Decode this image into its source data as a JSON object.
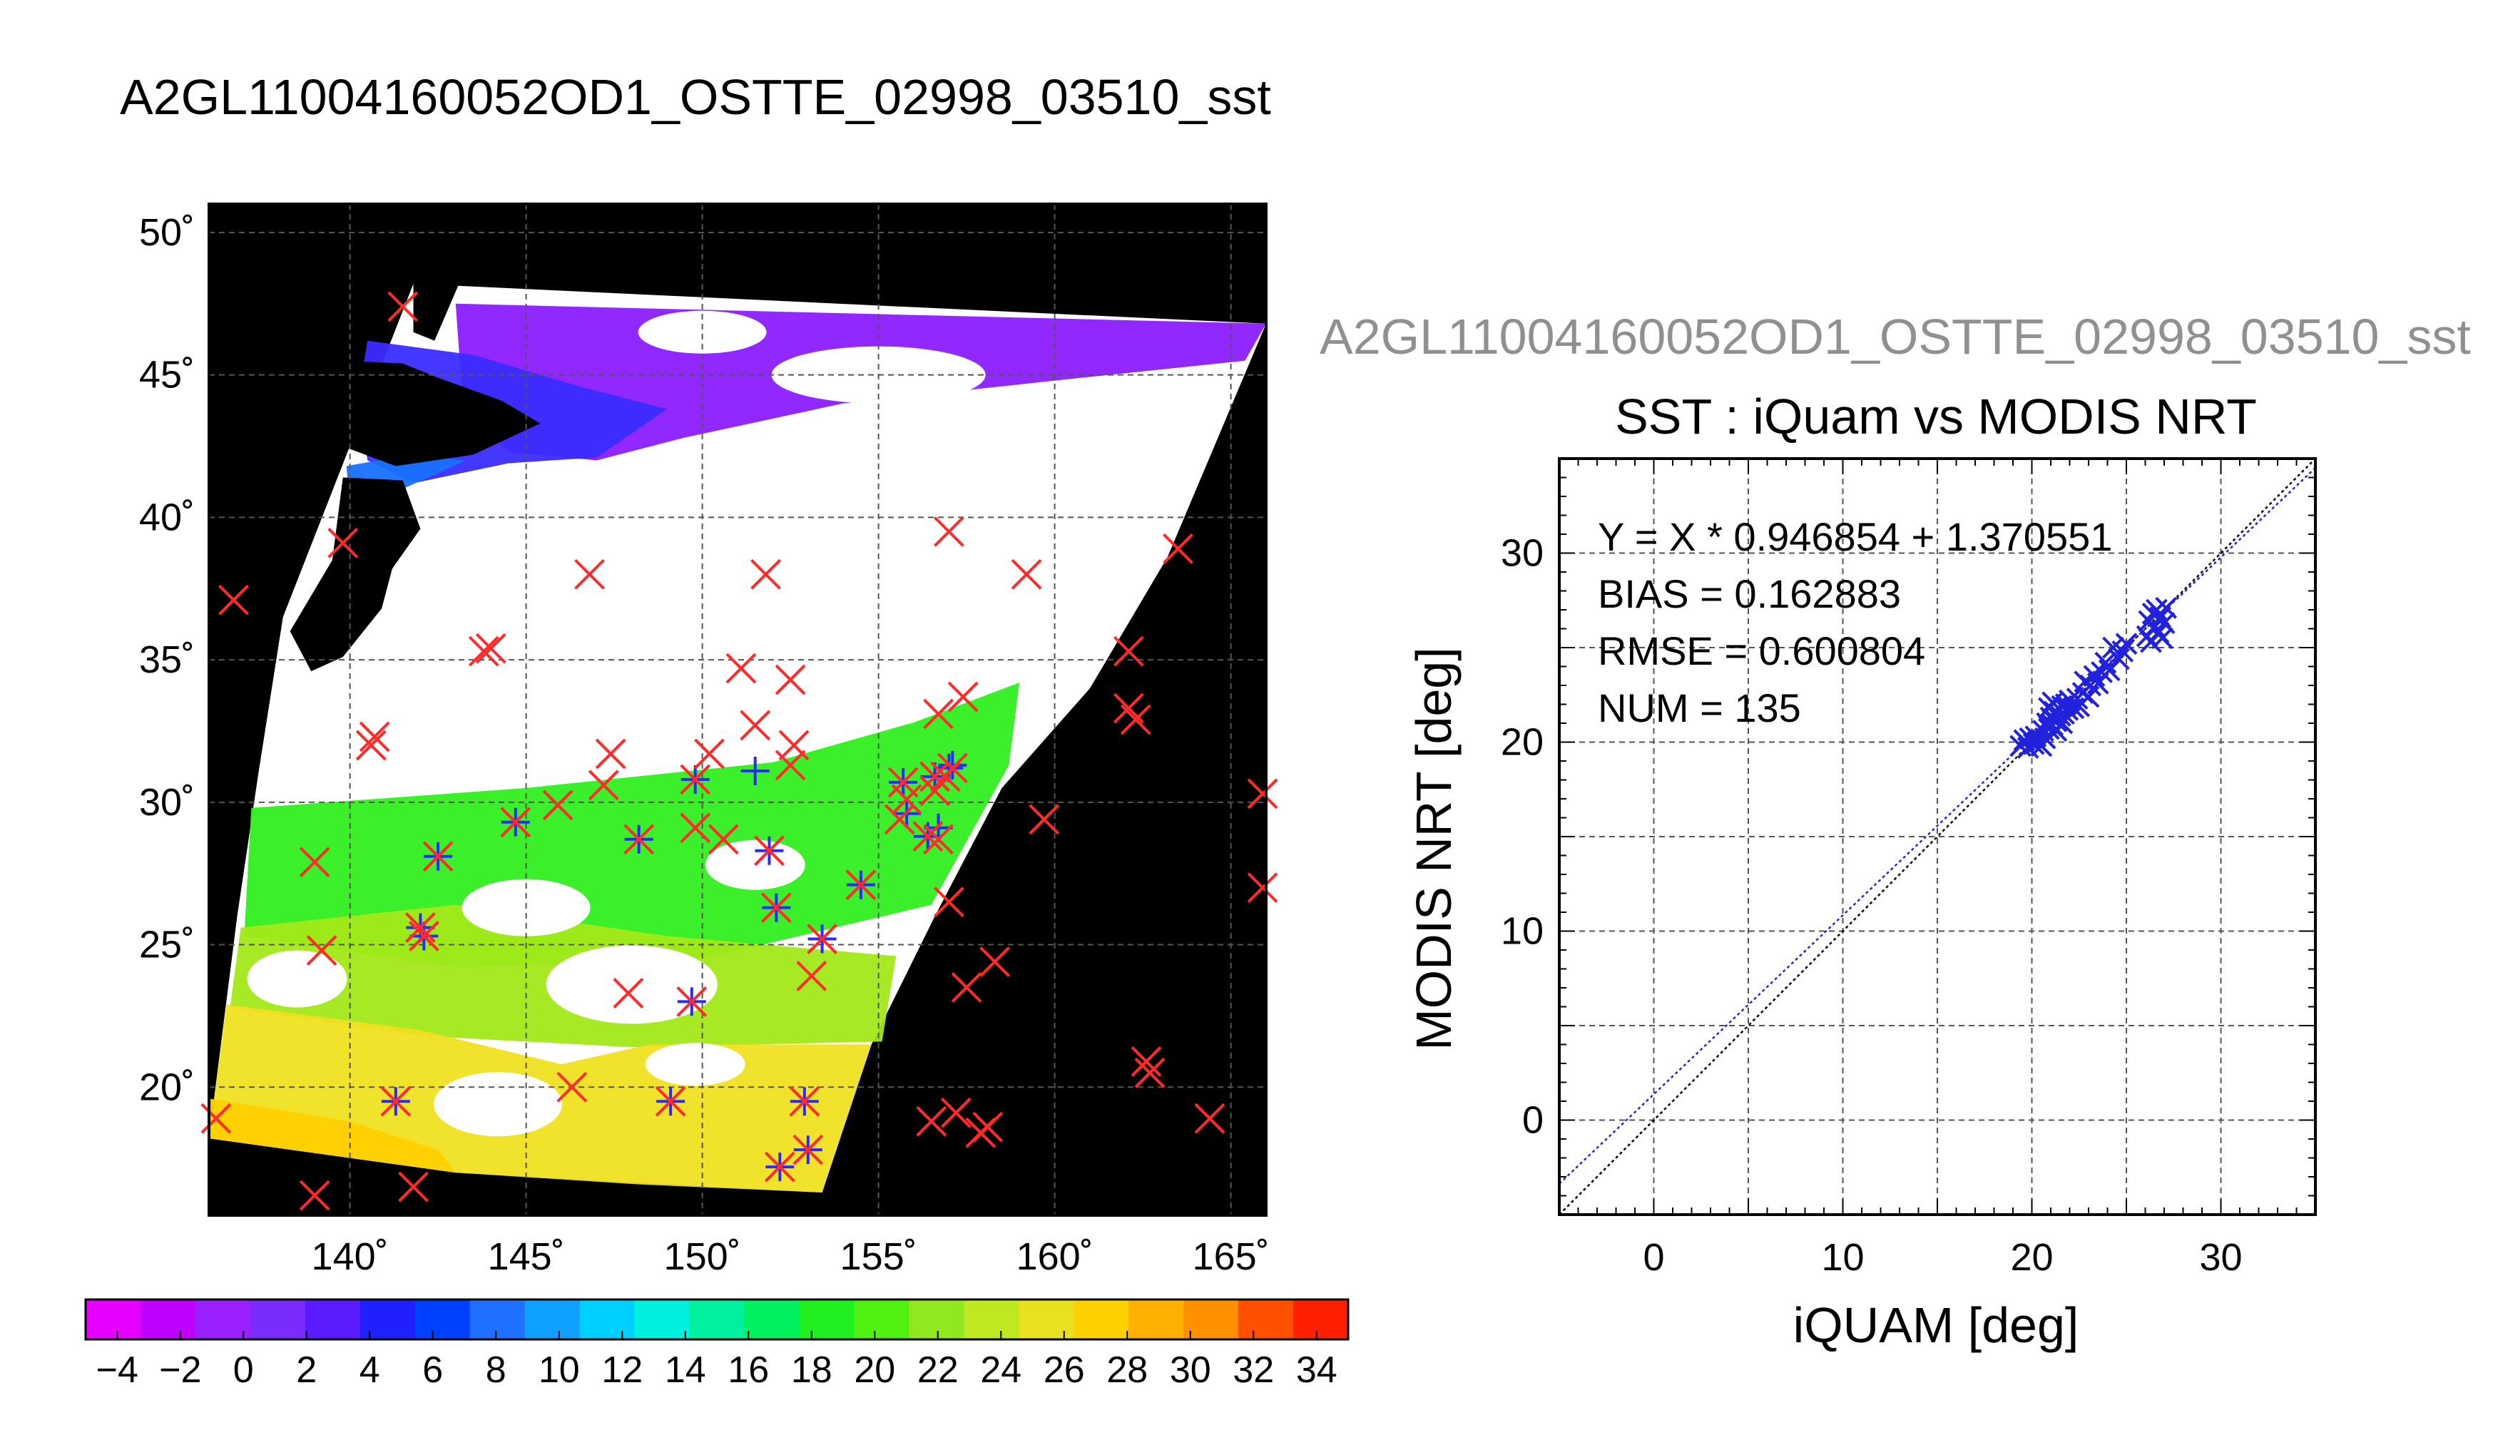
{
  "page": {
    "main_title": "A2GL11004160052OD1_OSTTE_02998_03510_sst",
    "secondary_title": "A2GL11004160052OD1_OSTTE_02998_03510_sst"
  },
  "chart_data": [
    {
      "type": "map",
      "xlabel": "",
      "ylabel": "",
      "xlim": [
        136,
        166
      ],
      "ylim": [
        15.5,
        51
      ],
      "x_ticks": [
        140,
        145,
        150,
        155,
        160,
        165
      ],
      "y_ticks": [
        20,
        25,
        30,
        35,
        40,
        45,
        50
      ],
      "x_tick_labels": [
        "140˚",
        "145˚",
        "150˚",
        "155˚",
        "160˚",
        "165˚"
      ],
      "y_tick_labels": [
        "20˚",
        "25˚",
        "30˚",
        "35˚",
        "40˚",
        "45˚",
        "50˚"
      ],
      "grid": true,
      "colorbar": {
        "min": -5,
        "max": 35,
        "tick_values": [
          -4,
          -2,
          0,
          2,
          4,
          6,
          8,
          10,
          12,
          14,
          16,
          18,
          20,
          22,
          24,
          26,
          28,
          30,
          32,
          34
        ],
        "tick_labels": [
          "−4",
          "−2",
          "0",
          "2",
          "4",
          "6",
          "8",
          "10",
          "12",
          "14",
          "16",
          "18",
          "20",
          "22",
          "24",
          "26",
          "28",
          "30",
          "32",
          "34"
        ],
        "colors": [
          "#e600ff",
          "#c000ff",
          "#9a20ff",
          "#7a2cff",
          "#5a1cff",
          "#2020ff",
          "#0040ff",
          "#2070ff",
          "#10a0ff",
          "#00d0ff",
          "#00f0e0",
          "#00f0a0",
          "#00f060",
          "#20f020",
          "#50f010",
          "#90e820",
          "#c0e820",
          "#e8e020",
          "#ffd000",
          "#ffb000",
          "#ff9000",
          "#ff5000",
          "#ff2000"
        ]
      },
      "markers": {
        "all_points_color": "#ff2a2a",
        "matched_points_color": "#2a2aff",
        "all_points": [
          [
            136.2,
            18.9
          ],
          [
            136.7,
            37.1
          ],
          [
            139.0,
            16.2
          ],
          [
            139.0,
            27.9
          ],
          [
            139.2,
            24.8
          ],
          [
            139.8,
            39.1
          ],
          [
            140.6,
            32.0
          ],
          [
            140.7,
            32.3
          ],
          [
            141.3,
            19.5
          ],
          [
            141.5,
            47.4
          ],
          [
            141.8,
            16.5
          ],
          [
            142.0,
            25.6
          ],
          [
            142.1,
            25.3
          ],
          [
            142.5,
            28.1
          ],
          [
            143.8,
            35.3
          ],
          [
            144.0,
            35.4
          ],
          [
            144.7,
            29.3
          ],
          [
            145.9,
            29.9
          ],
          [
            146.3,
            20.0
          ],
          [
            146.8,
            38.0
          ],
          [
            147.2,
            30.6
          ],
          [
            147.4,
            31.7
          ],
          [
            147.9,
            23.3
          ],
          [
            148.2,
            28.7
          ],
          [
            149.1,
            19.5
          ],
          [
            149.7,
            23.0
          ],
          [
            149.8,
            29.1
          ],
          [
            149.8,
            30.8
          ],
          [
            150.2,
            31.7
          ],
          [
            150.6,
            28.7
          ],
          [
            151.1,
            34.7
          ],
          [
            151.5,
            32.7
          ],
          [
            151.8,
            38.0
          ],
          [
            151.9,
            28.3
          ],
          [
            152.1,
            26.3
          ],
          [
            152.2,
            17.2
          ],
          [
            152.5,
            34.3
          ],
          [
            152.5,
            31.3
          ],
          [
            152.6,
            32.0
          ],
          [
            152.9,
            19.5
          ],
          [
            153.0,
            17.8
          ],
          [
            153.1,
            23.9
          ],
          [
            153.4,
            25.2
          ],
          [
            154.5,
            27.1
          ],
          [
            155.6,
            29.4
          ],
          [
            155.7,
            30.7
          ],
          [
            155.8,
            30.1
          ],
          [
            156.4,
            28.8
          ],
          [
            156.5,
            18.8
          ],
          [
            156.6,
            30.4
          ],
          [
            156.6,
            30.9
          ],
          [
            156.7,
            28.7
          ],
          [
            156.7,
            33.1
          ],
          [
            156.9,
            30.9
          ],
          [
            157.0,
            26.5
          ],
          [
            157.0,
            39.5
          ],
          [
            157.1,
            31.2
          ],
          [
            157.2,
            19.1
          ],
          [
            157.4,
            33.7
          ],
          [
            157.5,
            23.5
          ],
          [
            157.9,
            18.4
          ],
          [
            158.1,
            18.6
          ],
          [
            158.3,
            24.4
          ],
          [
            159.2,
            38.0
          ],
          [
            159.7,
            29.4
          ],
          [
            162.1,
            35.3
          ],
          [
            162.1,
            33.3
          ],
          [
            162.3,
            32.9
          ],
          [
            162.6,
            20.9
          ],
          [
            162.7,
            20.5
          ],
          [
            163.5,
            38.9
          ],
          [
            164.4,
            18.9
          ],
          [
            165.9,
            30.3
          ],
          [
            165.9,
            27.0
          ]
        ],
        "matched_points": [
          [
            141.3,
            19.5
          ],
          [
            142.0,
            25.6
          ],
          [
            142.1,
            25.3
          ],
          [
            142.5,
            28.1
          ],
          [
            144.7,
            29.3
          ],
          [
            148.2,
            28.7
          ],
          [
            149.1,
            19.5
          ],
          [
            149.7,
            23.0
          ],
          [
            149.8,
            30.8
          ],
          [
            151.5,
            31.1
          ],
          [
            151.9,
            28.3
          ],
          [
            152.1,
            26.3
          ],
          [
            152.2,
            17.2
          ],
          [
            152.9,
            19.5
          ],
          [
            153.0,
            17.8
          ],
          [
            153.4,
            25.2
          ],
          [
            154.5,
            27.1
          ],
          [
            155.7,
            30.7
          ],
          [
            155.8,
            29.6
          ],
          [
            156.4,
            28.8
          ],
          [
            156.6,
            30.9
          ],
          [
            156.7,
            29.1
          ],
          [
            157.0,
            31.2
          ],
          [
            157.1,
            31.3
          ]
        ]
      }
    },
    {
      "type": "scatter",
      "title": "SST : iQuam vs MODIS NRT",
      "xlabel": "iQUAM [deg]",
      "ylabel": "MODIS NRT [deg]",
      "xlim": [
        -5,
        35
      ],
      "ylim": [
        -5,
        35
      ],
      "x_ticks": [
        0,
        10,
        20,
        30
      ],
      "y_ticks": [
        0,
        10,
        20,
        30
      ],
      "grid": true,
      "annotations": [
        "Y = X * 0.946854 + 1.370551",
        "BIAS = 0.162883",
        "RMSE = 0.600804",
        "NUM = 135"
      ],
      "regression": {
        "slope": 0.946854,
        "intercept": 1.370551
      },
      "identity_line": true,
      "series_color": "#2222dd",
      "points": [
        [
          19.4,
          19.8
        ],
        [
          19.6,
          20.1
        ],
        [
          19.8,
          19.7
        ],
        [
          19.9,
          20.2
        ],
        [
          20.1,
          19.9
        ],
        [
          20.2,
          20.3
        ],
        [
          20.3,
          20.0
        ],
        [
          20.5,
          19.8
        ],
        [
          20.6,
          20.6
        ],
        [
          20.7,
          20.2
        ],
        [
          20.8,
          21.0
        ],
        [
          20.9,
          20.7
        ],
        [
          21.0,
          21.3
        ],
        [
          21.1,
          20.9
        ],
        [
          21.2,
          21.6
        ],
        [
          21.3,
          21.1
        ],
        [
          21.4,
          21.8
        ],
        [
          21.5,
          21.4
        ],
        [
          21.6,
          21.9
        ],
        [
          21.7,
          21.5
        ],
        [
          21.8,
          22.0
        ],
        [
          21.9,
          21.7
        ],
        [
          20.9,
          21.8
        ],
        [
          21.1,
          22.1
        ],
        [
          21.3,
          20.6
        ],
        [
          21.6,
          21.0
        ],
        [
          22.0,
          22.2
        ],
        [
          22.2,
          21.8
        ],
        [
          22.4,
          22.3
        ],
        [
          22.5,
          21.9
        ],
        [
          22.7,
          22.6
        ],
        [
          22.8,
          23.2
        ],
        [
          23.0,
          22.4
        ],
        [
          23.1,
          23.0
        ],
        [
          23.3,
          23.5
        ],
        [
          23.5,
          23.1
        ],
        [
          23.7,
          23.7
        ],
        [
          23.9,
          24.2
        ],
        [
          24.1,
          23.8
        ],
        [
          24.3,
          25.0
        ],
        [
          24.6,
          24.4
        ],
        [
          24.8,
          24.8
        ],
        [
          25.0,
          25.2
        ],
        [
          26.1,
          25.6
        ],
        [
          26.2,
          26.4
        ],
        [
          26.3,
          25.3
        ],
        [
          26.4,
          26.8
        ],
        [
          26.5,
          26.1
        ],
        [
          26.6,
          27.0
        ],
        [
          26.7,
          25.8
        ],
        [
          26.8,
          26.6
        ],
        [
          26.9,
          25.5
        ],
        [
          27.0,
          26.3
        ],
        [
          27.1,
          27.1
        ]
      ]
    }
  ]
}
